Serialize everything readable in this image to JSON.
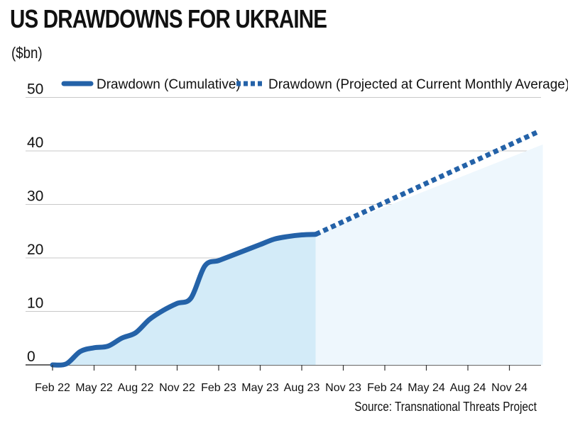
{
  "chart_data": {
    "type": "line",
    "title": "US DRAWDOWNS FOR UKRAINE",
    "ylabel": "($bn)",
    "source": "Source: Transnational Threats Project",
    "ylim": [
      0,
      50
    ],
    "y_ticks": [
      "0",
      "10",
      "20",
      "30",
      "40",
      "50"
    ],
    "y_tick_values": [
      0,
      10,
      20,
      30,
      40,
      50
    ],
    "x_ticks": [
      "Feb 22",
      "May 22",
      "Aug 22",
      "Nov 22",
      "Feb 23",
      "May 23",
      "Aug 23",
      "Nov 23",
      "Feb 24",
      "May 24",
      "Aug 24",
      "Nov 24"
    ],
    "x_range": [
      "Feb 22",
      "Jan 25"
    ],
    "grid": "horizontal",
    "legend_position": "top",
    "colors": {
      "line": "#2462a8",
      "fill_actual": "#d3ebf8",
      "fill_projected": "#eef7fd",
      "grid": "#c8c8c8"
    },
    "series": [
      {
        "name": "Drawdown (Cumulative)",
        "style": "solid",
        "x": [
          "Feb 22",
          "Mar 22",
          "Apr 22",
          "May 22",
          "Jun 22",
          "Jul 22",
          "Aug 22",
          "Sep 22",
          "Oct 22",
          "Nov 22",
          "Dec 22",
          "Jan 23",
          "Feb 23",
          "Mar 23",
          "Apr 23",
          "May 23",
          "Jun 23",
          "Jul 23",
          "Aug 23",
          "Sep 23"
        ],
        "values": [
          0,
          0.2,
          2.5,
          3.2,
          3.5,
          5.0,
          6.0,
          8.5,
          10.2,
          11.5,
          12.5,
          18.5,
          19.5,
          20.5,
          21.5,
          22.5,
          23.5,
          24.0,
          24.3,
          24.4
        ]
      },
      {
        "name": "Drawdown (Projected at Current Monthly Average)",
        "style": "dotted",
        "x": [
          "Sep 23",
          "Jan 25"
        ],
        "values": [
          24.4,
          43.5
        ]
      }
    ]
  }
}
